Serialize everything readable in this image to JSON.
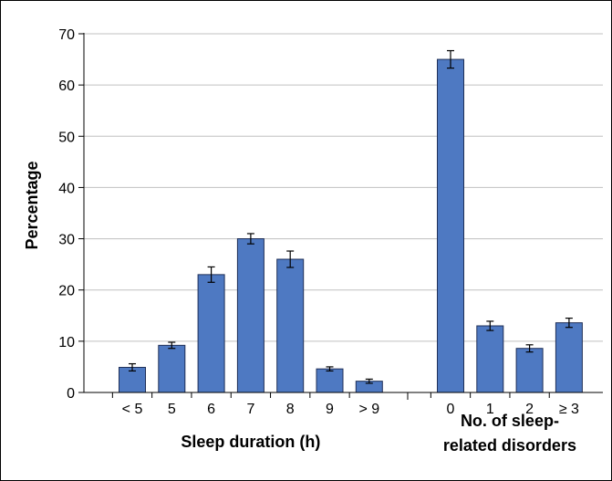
{
  "chart_data": {
    "type": "bar",
    "ylabel": "Percentage",
    "ylim": [
      0,
      70
    ],
    "yticks": [
      0,
      10,
      20,
      30,
      40,
      50,
      60,
      70
    ],
    "grid": true,
    "legend": "none",
    "colors": {
      "bar": "#4e79c2",
      "bar_edge": "#1f2f57",
      "grid": "#c0c0c0"
    },
    "groups": [
      {
        "label_lines": [
          "Sleep duration (h)"
        ],
        "categories": [
          "< 5",
          "5",
          "6",
          "7",
          "8",
          "9",
          "> 9"
        ],
        "values": [
          4.9,
          9.2,
          23.0,
          30.0,
          26.0,
          4.6,
          2.2
        ],
        "errors": [
          0.7,
          0.6,
          1.5,
          1.0,
          1.6,
          0.4,
          0.4
        ]
      },
      {
        "label_lines": [
          "No. of sleep-",
          "related disorders"
        ],
        "categories": [
          "0",
          "1",
          "2",
          "≥ 3"
        ],
        "values": [
          65.0,
          13.0,
          8.6,
          13.6
        ],
        "errors": [
          1.7,
          0.9,
          0.7,
          0.9
        ]
      }
    ]
  }
}
